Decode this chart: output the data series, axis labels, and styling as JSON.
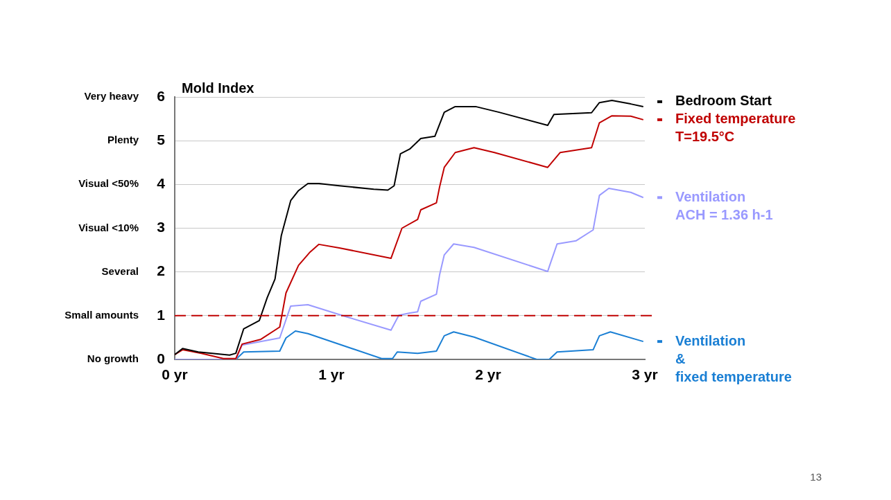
{
  "chart_data": {
    "type": "line",
    "title": "Mold Index",
    "xlim": [
      0,
      3
    ],
    "xticks": [
      {
        "value": 0,
        "label": "0 yr"
      },
      {
        "value": 1,
        "label": "1 yr"
      },
      {
        "value": 2,
        "label": "2 yr"
      },
      {
        "value": 3,
        "label": "3 yr"
      }
    ],
    "ylim": [
      0,
      6
    ],
    "yticks": [
      0,
      1,
      2,
      3,
      4,
      5,
      6
    ],
    "grid": "y",
    "ref_lines": [
      {
        "axis": "y",
        "value": 1,
        "color": "#c00000",
        "line_style": "dashed"
      }
    ],
    "annotations": [
      "No growth",
      "Small amounts",
      "Several",
      "Visual <10%",
      "Visual <50%",
      "Plenty",
      "Very heavy",
      "13"
    ],
    "legend": "right",
    "series": [
      {
        "name": "Bedroom Start",
        "color": "#000000",
        "x": [
          0,
          0.05,
          0.15,
          0.35,
          0.39,
          0.44,
          0.54,
          0.59,
          0.64,
          0.68,
          0.74,
          0.79,
          0.85,
          0.92,
          1.05,
          1.27,
          1.36,
          1.4,
          1.44,
          1.5,
          1.57,
          1.66,
          1.72,
          1.79,
          1.92,
          2.07,
          2.38,
          2.42,
          2.66,
          2.71,
          2.79,
          2.91,
          2.99
        ],
        "values": [
          0.11,
          0.25,
          0.17,
          0.1,
          0.14,
          0.7,
          0.89,
          1.41,
          1.84,
          2.83,
          3.63,
          3.86,
          4.02,
          4.02,
          3.97,
          3.89,
          3.87,
          3.97,
          4.7,
          4.81,
          5.05,
          5.1,
          5.65,
          5.78,
          5.78,
          5.65,
          5.35,
          5.6,
          5.64,
          5.87,
          5.92,
          5.84,
          5.78
        ]
      },
      {
        "name": "Fixed temperature\nT=19.5°C",
        "color": "#c00000",
        "x": [
          0,
          0.05,
          0.17,
          0.31,
          0.39,
          0.43,
          0.55,
          0.67,
          0.71,
          0.79,
          0.86,
          0.92,
          1.05,
          1.38,
          1.45,
          1.55,
          1.57,
          1.67,
          1.69,
          1.72,
          1.79,
          1.91,
          2.04,
          2.38,
          2.46,
          2.66,
          2.71,
          2.79,
          2.91,
          2.99
        ],
        "values": [
          0.11,
          0.22,
          0.14,
          0.02,
          0.02,
          0.35,
          0.46,
          0.74,
          1.52,
          2.15,
          2.44,
          2.63,
          2.55,
          2.31,
          3.0,
          3.2,
          3.42,
          3.58,
          3.94,
          4.39,
          4.73,
          4.84,
          4.73,
          4.39,
          4.73,
          4.84,
          5.41,
          5.57,
          5.56,
          5.48
        ]
      },
      {
        "name": "Ventilation\nACH = 1.36 h-1",
        "color": "#9999ff",
        "x": [
          0,
          0.39,
          0.43,
          0.67,
          0.74,
          0.85,
          1.1,
          1.38,
          1.43,
          1.5,
          1.55,
          1.57,
          1.67,
          1.69,
          1.72,
          1.78,
          1.91,
          2.38,
          2.39,
          2.44,
          2.56,
          2.67,
          2.71,
          2.77,
          2.91,
          2.99
        ],
        "values": [
          0,
          0,
          0.33,
          0.49,
          1.22,
          1.25,
          0.97,
          0.67,
          1.01,
          1.06,
          1.09,
          1.33,
          1.49,
          1.93,
          2.39,
          2.64,
          2.56,
          2.01,
          2.12,
          2.64,
          2.71,
          2.96,
          3.75,
          3.91,
          3.82,
          3.7
        ]
      },
      {
        "name": "Ventilation\n&\nfixed temperature",
        "color": "#1a7fd4",
        "x": [
          0,
          0.39,
          0.44,
          0.67,
          0.71,
          0.77,
          0.85,
          1.32,
          1.39,
          1.42,
          1.55,
          1.67,
          1.72,
          1.78,
          1.91,
          2.31,
          2.39,
          2.44,
          2.67,
          2.71,
          2.78,
          2.99
        ],
        "values": [
          0,
          0,
          0.17,
          0.19,
          0.49,
          0.65,
          0.59,
          0.02,
          0.02,
          0.17,
          0.14,
          0.19,
          0.54,
          0.63,
          0.51,
          0,
          0,
          0.17,
          0.22,
          0.54,
          0.63,
          0.41
        ]
      }
    ]
  }
}
